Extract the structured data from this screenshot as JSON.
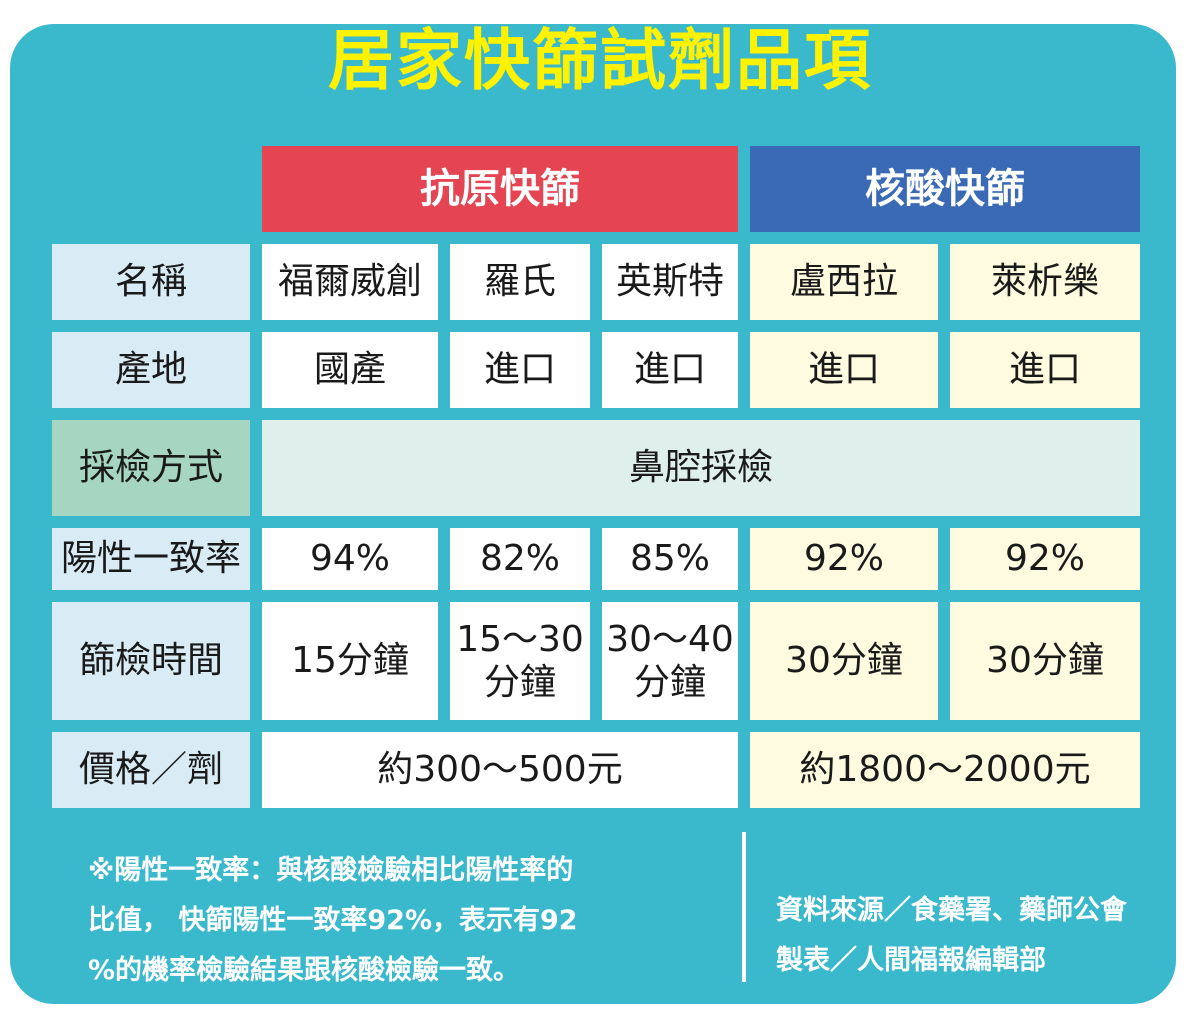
{
  "title": "居家快篩試劑品項",
  "headers": {
    "antigen": "抗原快篩",
    "nucleic": "核酸快篩"
  },
  "rows": {
    "name": {
      "label": "名稱",
      "values": [
        "福爾威創",
        "羅氏",
        "英斯特",
        "盧西拉",
        "萊析樂"
      ]
    },
    "origin": {
      "label": "產地",
      "values": [
        "國產",
        "進口",
        "進口",
        "進口",
        "進口"
      ]
    },
    "method": {
      "label": "採檢方式",
      "value": "鼻腔採檢"
    },
    "positive": {
      "label": "陽性一致率",
      "values": [
        "94%",
        "82%",
        "85%",
        "92%",
        "92%"
      ]
    },
    "time": {
      "label": "篩檢時間",
      "values": [
        [
          "15分鐘"
        ],
        [
          "15～30",
          "分鐘"
        ],
        [
          "30～40",
          "分鐘"
        ],
        [
          "30分鐘"
        ],
        [
          "30分鐘"
        ]
      ]
    },
    "price": {
      "label": "價格／劑",
      "antigen": "約300～500元",
      "nucleic": "約1800～2000元"
    }
  },
  "note": [
    "※陽性一致率：與核酸檢驗相比陽性率的",
    "比值， 快篩陽性一致率92%，表示有92",
    "%的機率檢驗結果跟核酸檢驗一致。"
  ],
  "source": [
    "資料來源／食藥署、藥師公會",
    "製表／人間福報編輯部"
  ]
}
